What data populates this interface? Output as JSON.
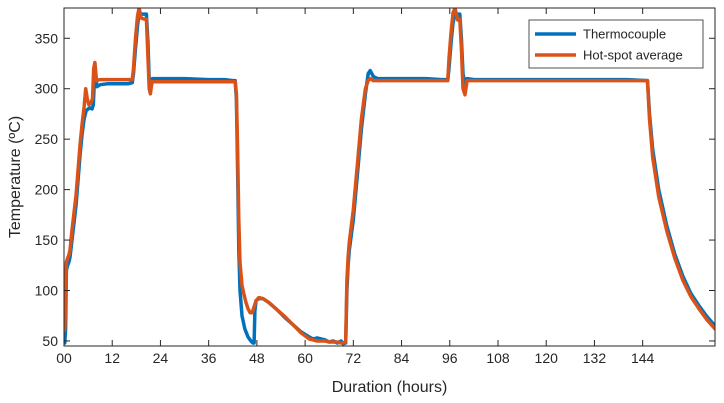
{
  "chart_data": {
    "type": "line",
    "xlabel": "Duration (hours)",
    "ylabel": "Temperature (ºC)",
    "xlim": [
      0,
      162
    ],
    "ylim": [
      45,
      380
    ],
    "xticks": [
      0,
      12,
      24,
      36,
      48,
      60,
      72,
      84,
      96,
      108,
      120,
      132,
      144
    ],
    "xtick_labels": [
      "00",
      "12",
      "24",
      "36",
      "48",
      "60",
      "72",
      "84",
      "96",
      "108",
      "120",
      "132",
      "144"
    ],
    "yticks": [
      50,
      100,
      150,
      200,
      250,
      300,
      350
    ],
    "grid": false,
    "legend_position": "top-right",
    "series": [
      {
        "name": "Thermocouple",
        "color": "#0072BD",
        "points": [
          [
            0.0,
            55
          ],
          [
            0.2,
            48
          ],
          [
            0.4,
            62
          ],
          [
            0.6,
            120
          ],
          [
            0.9,
            125
          ],
          [
            1.2,
            128
          ],
          [
            1.5,
            133
          ],
          [
            2,
            150
          ],
          [
            3,
            185
          ],
          [
            3.5,
            210
          ],
          [
            4,
            235
          ],
          [
            4.5,
            255
          ],
          [
            5,
            270
          ],
          [
            5.5,
            278
          ],
          [
            6,
            280
          ],
          [
            6.5,
            281
          ],
          [
            7,
            280
          ],
          [
            7.3,
            284
          ],
          [
            7.6,
            310
          ],
          [
            7.9,
            312
          ],
          [
            8.2,
            302
          ],
          [
            9,
            304
          ],
          [
            11,
            305
          ],
          [
            14,
            305
          ],
          [
            16,
            305
          ],
          [
            17,
            306
          ],
          [
            17.3,
            315
          ],
          [
            17.8,
            340
          ],
          [
            18.3,
            362
          ],
          [
            18.7,
            376
          ],
          [
            19.2,
            374
          ],
          [
            20,
            374
          ],
          [
            20.5,
            374
          ],
          [
            20.9,
            345
          ],
          [
            21.2,
            308
          ],
          [
            21.6,
            300
          ],
          [
            22,
            310
          ],
          [
            24,
            310
          ],
          [
            30,
            310
          ],
          [
            36,
            309
          ],
          [
            40,
            309
          ],
          [
            42,
            308
          ],
          [
            42.6,
            308
          ],
          [
            42.9,
            290
          ],
          [
            43.2,
            220
          ],
          [
            43.5,
            140
          ],
          [
            43.8,
            100
          ],
          [
            44.3,
            75
          ],
          [
            45,
            62
          ],
          [
            45.8,
            54
          ],
          [
            46.5,
            50
          ],
          [
            47,
            48
          ],
          [
            47.3,
            48
          ],
          [
            47.5,
            80
          ],
          [
            47.8,
            90
          ],
          [
            48.5,
            92
          ],
          [
            49.5,
            92
          ],
          [
            51,
            88
          ],
          [
            53,
            81
          ],
          [
            55,
            73
          ],
          [
            57,
            66
          ],
          [
            59,
            59
          ],
          [
            61,
            54
          ],
          [
            62,
            52
          ],
          [
            63,
            53
          ],
          [
            64,
            52
          ],
          [
            65,
            51
          ],
          [
            66,
            49
          ],
          [
            67,
            50
          ],
          [
            68,
            48
          ],
          [
            69,
            50
          ],
          [
            69.5,
            47
          ],
          [
            69.8,
            48
          ],
          [
            70.1,
            48
          ],
          [
            70.4,
            100
          ],
          [
            70.7,
            125
          ],
          [
            71,
            140
          ],
          [
            72,
            170
          ],
          [
            73,
            215
          ],
          [
            74,
            260
          ],
          [
            75,
            295
          ],
          [
            75.7,
            315
          ],
          [
            76.2,
            318
          ],
          [
            77,
            312
          ],
          [
            78,
            310
          ],
          [
            84,
            310
          ],
          [
            90,
            310
          ],
          [
            94,
            309
          ],
          [
            95.5,
            309
          ],
          [
            95.8,
            320
          ],
          [
            96.3,
            345
          ],
          [
            96.8,
            365
          ],
          [
            97.3,
            374
          ],
          [
            98,
            374
          ],
          [
            98.5,
            374
          ],
          [
            98.9,
            350
          ],
          [
            99.3,
            315
          ],
          [
            99.8,
            305
          ],
          [
            100.3,
            310
          ],
          [
            102,
            309
          ],
          [
            108,
            309
          ],
          [
            120,
            309
          ],
          [
            132,
            309
          ],
          [
            140,
            309
          ],
          [
            145.2,
            308
          ],
          [
            145.7,
            275
          ],
          [
            146.5,
            240
          ],
          [
            148,
            200
          ],
          [
            150,
            164
          ],
          [
            152,
            136
          ],
          [
            154,
            114
          ],
          [
            156,
            97
          ],
          [
            158,
            85
          ],
          [
            160,
            74
          ],
          [
            162,
            65
          ]
        ]
      },
      {
        "name": "Hot-spot average",
        "color": "#D95319",
        "points": [
          [
            0.0,
            60
          ],
          [
            0.2,
            62
          ],
          [
            0.4,
            90
          ],
          [
            0.6,
            128
          ],
          [
            0.9,
            132
          ],
          [
            1.2,
            135
          ],
          [
            1.5,
            140
          ],
          [
            2,
            160
          ],
          [
            3,
            195
          ],
          [
            3.5,
            220
          ],
          [
            4,
            245
          ],
          [
            4.5,
            265
          ],
          [
            5,
            282
          ],
          [
            5.4,
            300
          ],
          [
            5.8,
            290
          ],
          [
            6.2,
            284
          ],
          [
            6.7,
            286
          ],
          [
            7.1,
            290
          ],
          [
            7.4,
            320
          ],
          [
            7.7,
            326
          ],
          [
            8.1,
            308
          ],
          [
            9,
            309
          ],
          [
            11,
            309
          ],
          [
            14,
            309
          ],
          [
            16,
            309
          ],
          [
            17,
            309
          ],
          [
            17.3,
            320
          ],
          [
            17.8,
            350
          ],
          [
            18.3,
            372
          ],
          [
            18.7,
            380
          ],
          [
            19.2,
            370
          ],
          [
            20,
            369
          ],
          [
            20.5,
            369
          ],
          [
            20.9,
            330
          ],
          [
            21.2,
            300
          ],
          [
            21.5,
            295
          ],
          [
            21.9,
            307
          ],
          [
            24,
            307
          ],
          [
            30,
            307
          ],
          [
            36,
            307
          ],
          [
            40,
            307
          ],
          [
            42,
            307
          ],
          [
            42.6,
            307
          ],
          [
            42.9,
            295
          ],
          [
            43.2,
            240
          ],
          [
            43.5,
            170
          ],
          [
            43.8,
            128
          ],
          [
            44.3,
            105
          ],
          [
            44.8,
            96
          ],
          [
            45.3,
            88
          ],
          [
            45.8,
            82
          ],
          [
            46.3,
            78
          ],
          [
            46.8,
            78
          ],
          [
            47.3,
            84
          ],
          [
            47.8,
            90
          ],
          [
            48.5,
            93
          ],
          [
            49.5,
            92
          ],
          [
            51,
            88
          ],
          [
            53,
            81
          ],
          [
            55,
            74
          ],
          [
            57,
            66
          ],
          [
            59,
            58
          ],
          [
            61,
            52
          ],
          [
            62,
            51
          ],
          [
            63,
            50
          ],
          [
            64,
            50
          ],
          [
            65,
            50
          ],
          [
            66,
            49
          ],
          [
            67,
            49
          ],
          [
            68,
            49
          ],
          [
            69,
            48
          ],
          [
            69.5,
            48
          ],
          [
            70.1,
            49
          ],
          [
            70.4,
            110
          ],
          [
            70.7,
            133
          ],
          [
            71,
            148
          ],
          [
            72,
            180
          ],
          [
            73,
            225
          ],
          [
            74,
            270
          ],
          [
            75,
            300
          ],
          [
            75.7,
            308
          ],
          [
            76.2,
            310
          ],
          [
            77,
            308
          ],
          [
            78,
            308
          ],
          [
            84,
            308
          ],
          [
            90,
            308
          ],
          [
            94,
            308
          ],
          [
            95.5,
            308
          ],
          [
            95.8,
            330
          ],
          [
            96.3,
            355
          ],
          [
            96.8,
            375
          ],
          [
            97.3,
            380
          ],
          [
            98,
            368
          ],
          [
            98.5,
            369
          ],
          [
            98.9,
            340
          ],
          [
            99.3,
            300
          ],
          [
            99.8,
            294
          ],
          [
            100.3,
            308
          ],
          [
            102,
            308
          ],
          [
            108,
            308
          ],
          [
            120,
            308
          ],
          [
            132,
            308
          ],
          [
            140,
            308
          ],
          [
            145.2,
            308
          ],
          [
            145.7,
            270
          ],
          [
            146.5,
            232
          ],
          [
            148,
            193
          ],
          [
            150,
            159
          ],
          [
            152,
            132
          ],
          [
            154,
            110
          ],
          [
            156,
            94
          ],
          [
            158,
            82
          ],
          [
            160,
            71
          ],
          [
            162,
            62
          ]
        ]
      }
    ]
  }
}
